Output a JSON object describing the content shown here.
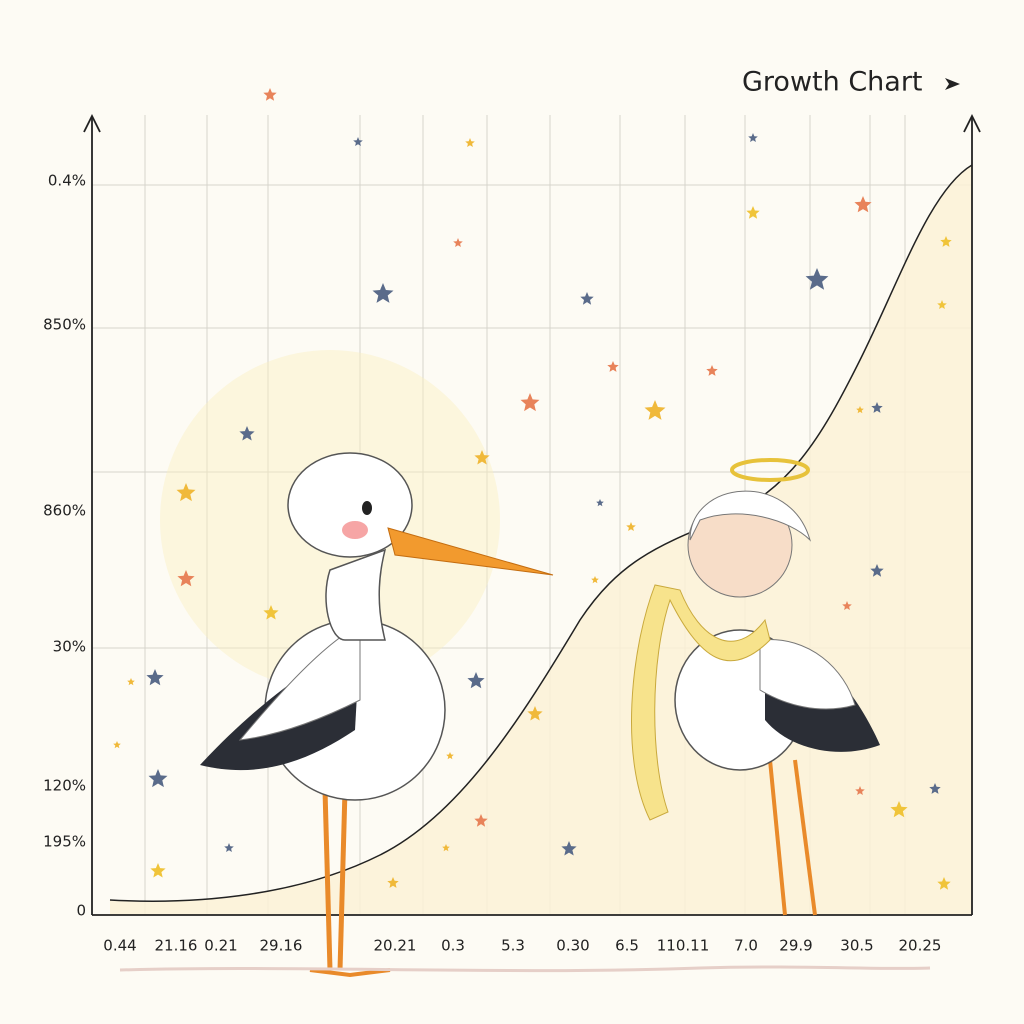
{
  "title": "Growth Chart",
  "y_axis_labels": [
    "0.4%",
    "850%",
    "860%",
    "30%",
    "120%",
    "195%",
    "0"
  ],
  "x_axis_labels": [
    "0.44",
    "21.16",
    "0.21",
    "29.16",
    "20.21",
    "0.3",
    "5.3",
    "0.30",
    "6.5",
    "110.11",
    "7.0",
    "29.9",
    "30.5",
    "20.25"
  ]
}
